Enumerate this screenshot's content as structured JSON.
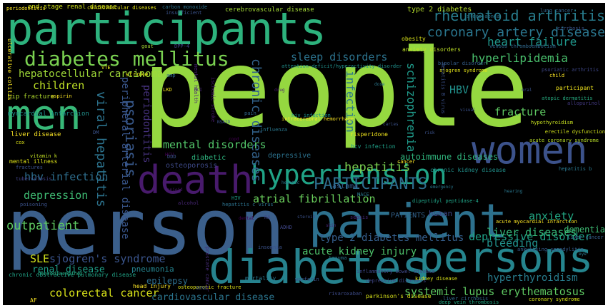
{
  "words": [
    {
      "text": "people",
      "color": "#95d840"
    },
    {
      "text": "person",
      "color": "#3b5f8b"
    },
    {
      "text": "participants",
      "color": "#2db27d"
    },
    {
      "text": "patient",
      "color": "#2d718e"
    },
    {
      "text": "diabetes",
      "color": "#26828e"
    },
    {
      "text": "persons",
      "color": "#25858e"
    },
    {
      "text": "men",
      "color": "#37b878"
    },
    {
      "text": "women",
      "color": "#3c528b"
    },
    {
      "text": "death",
      "color": "#481a6c"
    },
    {
      "text": "hypertension",
      "color": "#20a386"
    },
    {
      "text": "diabetes mellitus",
      "color": "#7ad151"
    },
    {
      "text": "coronary artery disease",
      "color": "#2a768e"
    },
    {
      "text": "rheumatoid arthritis",
      "color": "#287d8e"
    },
    {
      "text": "PARTICIPANTS",
      "color": "#2e6e8e"
    },
    {
      "text": "heart failure",
      "color": "#1f968b"
    },
    {
      "text": "hyperlipidemia",
      "color": "#4ac16d"
    },
    {
      "text": "chronic diseases",
      "color": "#33638d"
    },
    {
      "text": "viral hepatitis",
      "color": "#2c738e"
    },
    {
      "text": "psoriasis",
      "color": "#38598c"
    },
    {
      "text": "sleep disorders",
      "color": "#2c738e"
    },
    {
      "text": "schizophrenia",
      "color": "#1f9a8a"
    },
    {
      "text": "hepatocellular carcinoma",
      "color": "#a0da39"
    },
    {
      "text": "children",
      "color": "#bddf26"
    },
    {
      "text": "mental disorders",
      "color": "#52c569"
    },
    {
      "text": "atrial fibrillation",
      "color": "#69cd5b"
    },
    {
      "text": "systemic lupus erythematosus",
      "color": "#5ec962"
    },
    {
      "text": "outpatient",
      "color": "#5ec962"
    },
    {
      "text": "depression",
      "color": "#3fbc73"
    },
    {
      "text": "hbv infection",
      "color": "#2e6e8e"
    },
    {
      "text": "SLE",
      "color": "#d2e21b"
    },
    {
      "text": "sjogren's syndrome",
      "color": "#3a548c"
    },
    {
      "text": "renal disease",
      "color": "#1fa088"
    },
    {
      "text": "colorectal cancer",
      "color": "#d8e219"
    },
    {
      "text": "cardiovascular disease",
      "color": "#2b758e"
    },
    {
      "text": "epilepsy",
      "color": "#2e6f8e"
    },
    {
      "text": "pneumonia",
      "color": "#25838e"
    },
    {
      "text": "acute kidney injury",
      "color": "#4ec36b"
    },
    {
      "text": "type 2 diabetes mellitus",
      "color": "#355f8d"
    },
    {
      "text": "depressive disorder",
      "color": "#1fa187"
    },
    {
      "text": "hyperthyroidism",
      "color": "#287d8e"
    },
    {
      "text": "liver diseases",
      "color": "#35b779"
    },
    {
      "text": "bleeding",
      "color": "#21918c"
    },
    {
      "text": "anxiety",
      "color": "#22a884"
    },
    {
      "text": "dementia",
      "color": "#3dbc74"
    },
    {
      "text": "hepatitis",
      "color": "#7ad151"
    },
    {
      "text": "infection",
      "color": "#2a768e"
    },
    {
      "text": "fracture",
      "color": "#5ec962"
    },
    {
      "text": "HBV",
      "color": "#21918c"
    },
    {
      "text": "autoimmune diseases",
      "color": "#2fb47c"
    },
    {
      "text": "peripheral arterial disease",
      "color": "#39568c"
    },
    {
      "text": "periodontitis",
      "color": "#46327e"
    },
    {
      "text": "depressive",
      "color": "#2c728e"
    },
    {
      "text": "diabetic",
      "color": "#2db27d"
    },
    {
      "text": "osteoporosis",
      "color": "#3e4a89"
    },
    {
      "text": "human",
      "color": "#3e4989"
    },
    {
      "text": "PATIENTS",
      "color": "#33638d"
    },
    {
      "text": "asthma",
      "color": "#355e8d"
    },
    {
      "text": "type 2 diabetes",
      "color": "#b5de2b"
    },
    {
      "text": "obesity",
      "color": "#d8e219"
    },
    {
      "text": "anxiety disorders",
      "color": "#bddf26"
    },
    {
      "text": "end-stage renal disease",
      "color": "#d2e21b"
    },
    {
      "text": "cerebrovascular disease",
      "color": "#a5db36"
    },
    {
      "text": "insufficient",
      "color": "#3b528b"
    },
    {
      "text": "carbon monoxide",
      "color": "#2c728e"
    },
    {
      "text": "gout",
      "color": "#a8db34"
    },
    {
      "text": "DPP-4",
      "color": "#414487"
    },
    {
      "text": "sleep apnea",
      "color": "#2b758e"
    },
    {
      "text": "cirrhosis",
      "color": "#3b528b"
    },
    {
      "text": "bipolar disorder",
      "color": "#355f8d"
    },
    {
      "text": "venous thromboembolism",
      "color": "#31688e"
    },
    {
      "text": "hepatitis B virus",
      "color": "#3b528b"
    },
    {
      "text": "attention-deficit/hyperactivity disorder",
      "color": "#21918c"
    },
    {
      "text": "psoriatic arthritis",
      "color": "#3f4788"
    },
    {
      "text": "sjogren syndrome",
      "color": "#e5e419"
    },
    {
      "text": "child",
      "color": "#fde725"
    },
    {
      "text": "stroke",
      "color": "#dde318"
    },
    {
      "text": "hip fracture",
      "color": "#b2dd2d"
    },
    {
      "text": "aspirin",
      "color": "#fde725"
    },
    {
      "text": "participant",
      "color": "#f1e51d"
    },
    {
      "text": "atopic dermatitis",
      "color": "#27ad81"
    },
    {
      "text": "allopurinol",
      "color": "#443a83"
    },
    {
      "text": "myocardial infarction",
      "color": "#21918c"
    },
    {
      "text": "liver disease",
      "color": "#fde725"
    },
    {
      "text": "vitamin k",
      "color": "#c2df23"
    },
    {
      "text": "mental illness",
      "color": "#dde318"
    },
    {
      "text": "fractures",
      "color": "#3b528b"
    },
    {
      "text": "tuberculosis",
      "color": "#414487"
    },
    {
      "text": "hiv infection",
      "color": "#1f948c"
    },
    {
      "text": "intracerebral hemorrhage",
      "color": "#fde725"
    },
    {
      "text": "risperidone",
      "color": "#f1e51d"
    },
    {
      "text": "hcv infection",
      "color": "#1fa088"
    },
    {
      "text": "chronic kidney disease",
      "color": "#21918c"
    },
    {
      "text": "hepatitis b",
      "color": "#2a788e"
    },
    {
      "text": "hypothyroidism",
      "color": "#c8e020"
    },
    {
      "text": "erectile dysfunction",
      "color": "#d0e11c"
    },
    {
      "text": "acute coronary syndrome",
      "color": "#b8de29"
    },
    {
      "text": "acute myocardial infarction",
      "color": "#fde725"
    },
    {
      "text": "dipeptidyl peptidase-4",
      "color": "#20a386"
    },
    {
      "text": "cancer",
      "color": "#fde725"
    },
    {
      "text": "hepatitis c virus",
      "color": "#2c728e"
    },
    {
      "text": "alcohol",
      "color": "#482677"
    },
    {
      "text": "poisoning",
      "color": "#3b528b"
    },
    {
      "text": "benzodiazepines",
      "color": "#27ad81"
    },
    {
      "text": "cox",
      "color": "#dde318"
    },
    {
      "text": "insomnia",
      "color": "#3b528b"
    },
    {
      "text": "mortality",
      "color": "#2a788e"
    },
    {
      "text": "warfarin",
      "color": "#3a548c"
    },
    {
      "text": "head injury",
      "color": "#fde725"
    },
    {
      "text": "osteoporotic fracture",
      "color": "#e2e418"
    },
    {
      "text": "chronic obstructive pulmonary disease",
      "color": "#20a386"
    },
    {
      "text": "AF",
      "color": "#fde725"
    },
    {
      "text": "inflammatory bowel disease",
      "color": "#3e4989"
    },
    {
      "text": "depressive disorders",
      "color": "#3f4788"
    },
    {
      "text": "kidney disease",
      "color": "#d8e219"
    },
    {
      "text": "liver cirrhosis",
      "color": "#31688e"
    },
    {
      "text": "deep vein thrombosis",
      "color": "#22a884"
    },
    {
      "text": "parkinson's disease",
      "color": "#d8e219"
    },
    {
      "text": "coronary syndrome",
      "color": "#d8e219"
    },
    {
      "text": "ankylosing spondylitis",
      "color": "#365c8d"
    },
    {
      "text": "liver cancer",
      "color": "#355f8d"
    },
    {
      "text": "rivaroxaban",
      "color": "#3e4c8a"
    },
    {
      "text": "trauma",
      "color": "#2a788e"
    },
    {
      "text": "ADHD",
      "color": "#404688"
    },
    {
      "text": "RA",
      "color": "#414487"
    },
    {
      "text": "HIV",
      "color": "#1f9e89"
    },
    {
      "text": "sepsis",
      "color": "#482878"
    },
    {
      "text": "prostate cancer",
      "color": "#472c7a"
    },
    {
      "text": "ulcerative colitis",
      "color": "#fde725"
    },
    {
      "text": "periodontitis",
      "color": "#fde725"
    },
    {
      "text": "VTE",
      "color": "#e5e419"
    },
    {
      "text": "lung cancer",
      "color": "#33638d"
    },
    {
      "text": "cardiovascular diseases",
      "color": "#e5e419"
    },
    {
      "text": "mental health",
      "color": "#482475"
    },
    {
      "text": "ischemic stroke",
      "color": "#481a6c"
    },
    {
      "text": "amp",
      "color": "#31688e"
    },
    {
      "text": "LKD",
      "color": "#f1e51d"
    },
    {
      "text": "pain",
      "color": "#31688e"
    },
    {
      "text": "influenza",
      "color": "#2a788e"
    },
    {
      "text": "DM",
      "color": "#3b528b"
    },
    {
      "text": "HCV",
      "color": "#440154"
    },
    {
      "text": "DDD",
      "color": "#3b528b"
    },
    {
      "text": "MACE",
      "color": "#2a788e"
    },
    {
      "text": "NSAID",
      "color": "#3b528b"
    },
    {
      "text": "MCI",
      "color": "#482878"
    },
    {
      "text": "copd",
      "color": "#440154"
    },
    {
      "text": "hepatic",
      "color": "#2a788e"
    },
    {
      "text": "caries",
      "color": "#3b528b"
    },
    {
      "text": "dental",
      "color": "#440154"
    },
    {
      "text": "emergency",
      "color": "#2a788e"
    },
    {
      "text": "steroid",
      "color": "#3b528b"
    },
    {
      "text": "opioid",
      "color": "#481a6c"
    },
    {
      "text": "visual",
      "color": "#3b528b"
    },
    {
      "text": "hearing",
      "color": "#2a788e"
    },
    {
      "text": "skin",
      "color": "#482878"
    },
    {
      "text": "GERD",
      "color": "#3b528b"
    },
    {
      "text": "eye",
      "color": "#2a788e"
    },
    {
      "text": "oral",
      "color": "#3b528b"
    },
    {
      "text": "drug",
      "color": "#481a6c"
    },
    {
      "text": "dose",
      "color": "#2a788e"
    },
    {
      "text": "risk",
      "color": "#3b528b"
    }
  ]
}
